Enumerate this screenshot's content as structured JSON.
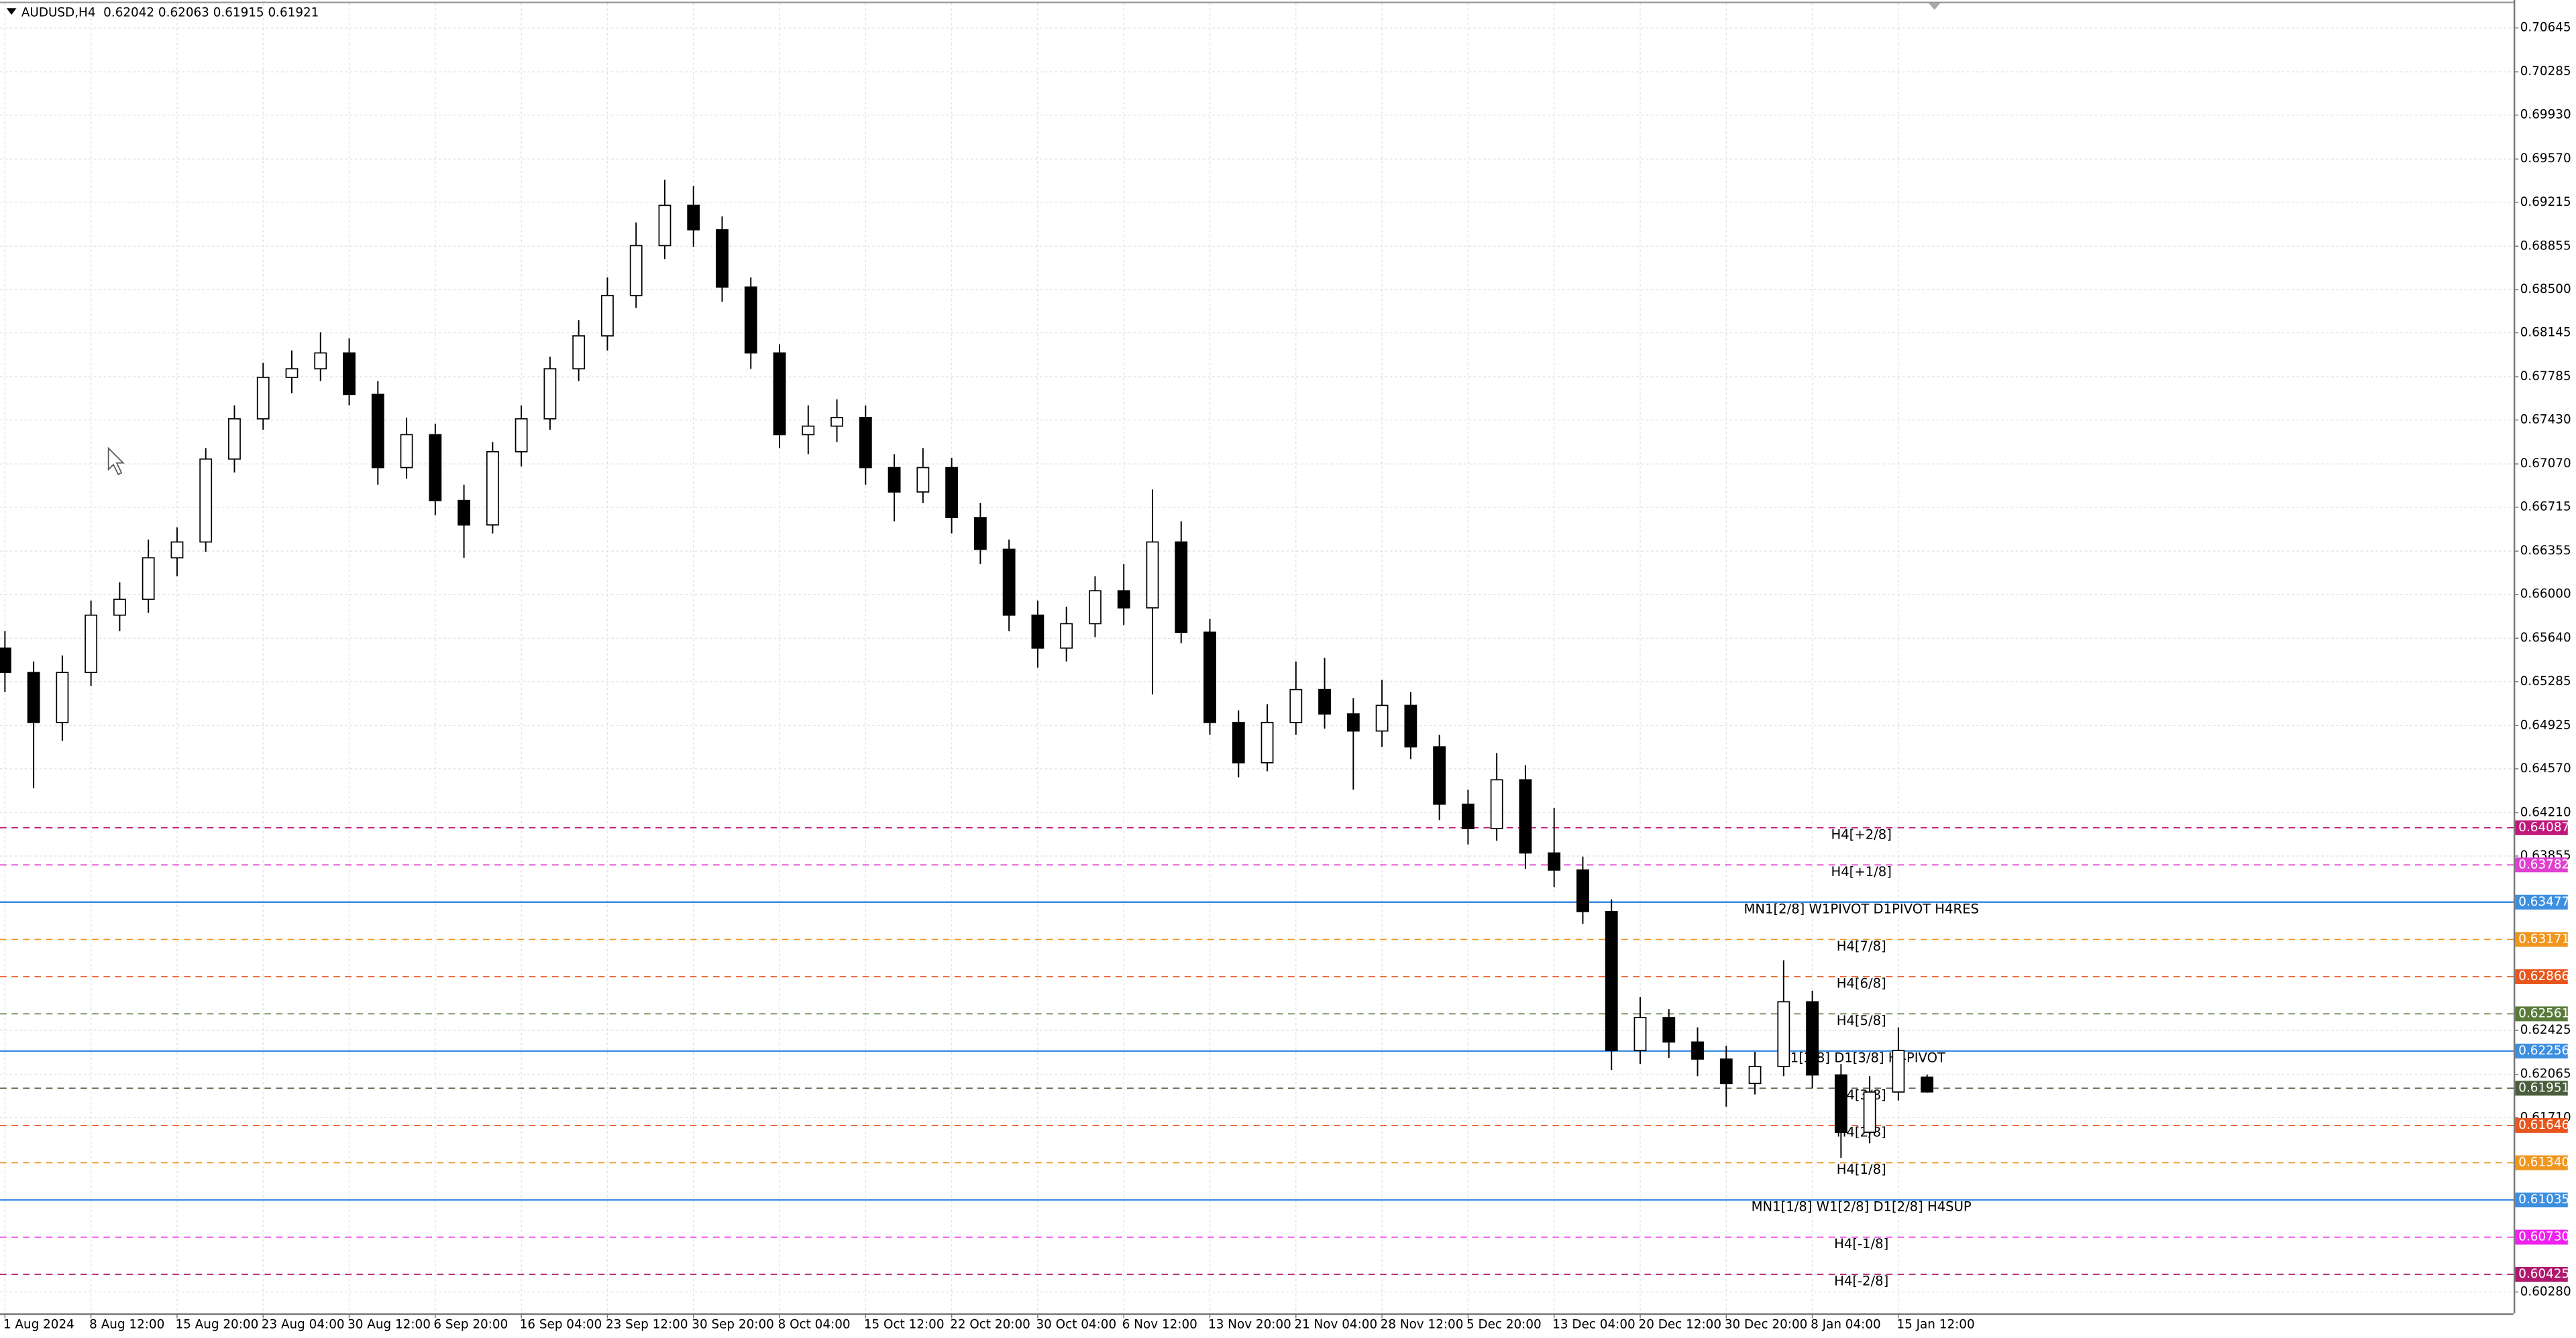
{
  "chart_data": {
    "type": "candlestick",
    "title": "AUDUSD,H4  0.62042 0.62063 0.61915 0.61921",
    "categories": [
      "1 Aug 2024",
      null,
      null,
      "8 Aug 12:00",
      null,
      null,
      "15 Aug 20:00",
      null,
      null,
      "23 Aug 04:00",
      null,
      null,
      "30 Aug 12:00",
      null,
      null,
      "6 Sep 20:00",
      null,
      null,
      "16 Sep 04:00",
      null,
      null,
      "23 Sep 12:00",
      null,
      null,
      "30 Sep 20:00",
      null,
      null,
      "8 Oct 04:00",
      null,
      null,
      "15 Oct 12:00",
      null,
      null,
      "22 Oct 20:00",
      null,
      null,
      "30 Oct 04:00",
      null,
      null,
      "6 Nov 12:00",
      null,
      null,
      "13 Nov 20:00",
      null,
      null,
      "21 Nov 04:00",
      null,
      null,
      "28 Nov 12:00",
      null,
      null,
      "5 Dec 20:00",
      null,
      null,
      "13 Dec 04:00",
      null,
      null,
      "20 Dec 12:00",
      null,
      null,
      "30 Dec 20:00",
      null,
      null,
      "8 Jan 04:00",
      null,
      null,
      "15 Jan 12:00",
      null
    ],
    "open": [
      0.6556,
      0.6536,
      0.6495,
      0.6536,
      0.6583,
      0.6596,
      0.663,
      0.6643,
      0.6711,
      0.6744,
      0.6778,
      0.6785,
      0.6798,
      0.6764,
      0.6704,
      0.6731,
      0.6677,
      0.6657,
      0.6717,
      0.6744,
      0.6785,
      0.6812,
      0.6845,
      0.6886,
      0.6919,
      0.6899,
      0.6852,
      0.6798,
      0.6731,
      0.6738,
      0.6745,
      0.6704,
      0.6684,
      0.6704,
      0.6663,
      0.6637,
      0.6583,
      0.6556,
      0.6576,
      0.6603,
      0.6589,
      0.6643,
      0.6569,
      0.6495,
      0.6462,
      0.6495,
      0.6522,
      0.6502,
      0.6488,
      0.6509,
      0.6475,
      0.6428,
      0.6408,
      0.6448,
      0.6388,
      0.6374,
      0.634,
      0.6226,
      0.6253,
      0.6233,
      0.6219,
      0.6199,
      0.6213,
      0.6266,
      0.6206,
      0.6159,
      0.6192,
      0.62042
    ],
    "high": [
      0.657,
      0.6545,
      0.655,
      0.6595,
      0.661,
      0.6645,
      0.6655,
      0.672,
      0.6755,
      0.679,
      0.68,
      0.6815,
      0.681,
      0.6775,
      0.6745,
      0.674,
      0.669,
      0.6725,
      0.6755,
      0.6795,
      0.6825,
      0.686,
      0.6905,
      0.694,
      0.6935,
      0.691,
      0.686,
      0.6805,
      0.6755,
      0.676,
      0.6755,
      0.6715,
      0.672,
      0.6712,
      0.6675,
      0.6645,
      0.6595,
      0.659,
      0.6615,
      0.6625,
      0.6686,
      0.666,
      0.658,
      0.6505,
      0.651,
      0.6545,
      0.6548,
      0.6515,
      0.653,
      0.652,
      0.6485,
      0.644,
      0.647,
      0.646,
      0.6425,
      0.6385,
      0.635,
      0.627,
      0.626,
      0.6245,
      0.623,
      0.6225,
      0.63,
      0.6275,
      0.6215,
      0.6205,
      0.6245,
      0.62063
    ],
    "low": [
      0.652,
      0.6441,
      0.648,
      0.6525,
      0.657,
      0.6585,
      0.6615,
      0.6635,
      0.67,
      0.6735,
      0.6765,
      0.6775,
      0.6755,
      0.669,
      0.6695,
      0.6665,
      0.663,
      0.665,
      0.6705,
      0.6735,
      0.6775,
      0.68,
      0.6835,
      0.6875,
      0.6885,
      0.684,
      0.6785,
      0.672,
      0.6715,
      0.6725,
      0.669,
      0.666,
      0.6675,
      0.665,
      0.6625,
      0.657,
      0.654,
      0.6545,
      0.6565,
      0.6575,
      0.6518,
      0.656,
      0.6485,
      0.645,
      0.6455,
      0.6485,
      0.649,
      0.644,
      0.6475,
      0.6465,
      0.6415,
      0.6395,
      0.6398,
      0.6375,
      0.636,
      0.633,
      0.621,
      0.6215,
      0.622,
      0.6205,
      0.618,
      0.619,
      0.6205,
      0.6195,
      0.6138,
      0.615,
      0.6185,
      0.61915
    ],
    "close": [
      0.6536,
      0.6495,
      0.6536,
      0.6583,
      0.6596,
      0.663,
      0.6643,
      0.6711,
      0.6744,
      0.6778,
      0.6785,
      0.6798,
      0.6764,
      0.6704,
      0.6731,
      0.6677,
      0.6657,
      0.6717,
      0.6744,
      0.6785,
      0.6812,
      0.6845,
      0.6886,
      0.6919,
      0.6899,
      0.6852,
      0.6798,
      0.6731,
      0.6738,
      0.6745,
      0.6704,
      0.6684,
      0.6704,
      0.6663,
      0.6637,
      0.6583,
      0.6556,
      0.6576,
      0.6603,
      0.6589,
      0.6643,
      0.6569,
      0.6495,
      0.6462,
      0.6495,
      0.6522,
      0.6502,
      0.6488,
      0.6509,
      0.6475,
      0.6428,
      0.6408,
      0.6448,
      0.6388,
      0.6374,
      0.634,
      0.6226,
      0.6253,
      0.6233,
      0.6219,
      0.6199,
      0.6213,
      0.6266,
      0.6206,
      0.6159,
      0.6192,
      0.6226,
      0.61921
    ],
    "bull_color": "#ffffff",
    "bear_color": "#000000",
    "wick_color": "#000000",
    "ylim": [
      0.60105,
      0.70847
    ],
    "yticks": [
      0.70645,
      0.70285,
      {
        "value": 0.6993,
        "label": "0.69930"
      },
      {
        "value": 0.6957,
        "label": "0.69570"
      },
      0.69215,
      0.68855,
      {
        "value": 0.685,
        "label": "0.68500"
      },
      0.68145,
      0.67785,
      {
        "value": 0.6743,
        "label": "0.67430"
      },
      {
        "value": 0.6707,
        "label": "0.67070"
      },
      0.66715,
      0.66355,
      {
        "value": 0.66,
        "label": "0.66000"
      },
      {
        "value": 0.6564,
        "label": "0.65640"
      },
      0.65285,
      0.64925,
      {
        "value": 0.6457,
        "label": "0.64570"
      },
      {
        "value": 0.6421,
        "label": "0.64210"
      },
      0.63855,
      0.62425,
      0.62065,
      {
        "value": 0.6171,
        "label": "0.61710"
      },
      {
        "value": 0.6028,
        "label": "0.60280"
      }
    ],
    "grid": true,
    "levels": [
      {
        "label": "H4[+2/8]",
        "value": 0.64087,
        "tag": "0.64087",
        "color": "#c0187a",
        "dashed": true
      },
      {
        "label": "H4[+1/8]",
        "value": 0.63782,
        "tag": "0.63782",
        "color": "#e040d0",
        "dashed": true
      },
      {
        "label": "MN1[2/8] W1PIVOT D1PIVOT H4RES",
        "value": 0.63477,
        "tag": "0.63477",
        "color": "#3d8fe0",
        "dashed": false
      },
      {
        "label": "H4[7/8]",
        "value": 0.63171,
        "tag": "0.63171",
        "color": "#f0961e",
        "dashed": true
      },
      {
        "label": "H4[6/8]",
        "value": 0.62866,
        "tag": "0.62866",
        "color": "#e8561e",
        "dashed": true
      },
      {
        "label": "H4[5/8]",
        "value": 0.62561,
        "tag": "0.62561",
        "color": "#5a7a3a",
        "dashed": true
      },
      {
        "label": "W1[3/8] D1[3/8] H4PIVOT",
        "value": 0.62256,
        "tag": "0.62256",
        "color": "#3d8fe0",
        "dashed": false
      },
      {
        "label": "H4[3/8]",
        "value": 0.61951,
        "tag": "0.61951",
        "color": "#4a5e3c",
        "dashed": true
      },
      {
        "label": "H4[2/8]",
        "value": 0.61646,
        "tag": "0.61646",
        "color": "#e8561e",
        "dashed": true
      },
      {
        "label": "H4[1/8]",
        "value": 0.6134,
        "tag": "0.61340",
        "color": "#f0961e",
        "dashed": true
      },
      {
        "label": "MN1[1/8] W1[2/8] D1[2/8] H4SUP",
        "value": 0.61035,
        "tag": "0.61035",
        "color": "#3d8fe0",
        "dashed": false
      },
      {
        "label": "H4[-1/8]",
        "value": 0.6073,
        "tag": "0.60730",
        "color": "#f020f0",
        "dashed": true
      },
      {
        "label": "H4[-2/8]",
        "value": 0.60425,
        "tag": "0.60425",
        "color": "#b0186e",
        "dashed": true
      }
    ]
  }
}
